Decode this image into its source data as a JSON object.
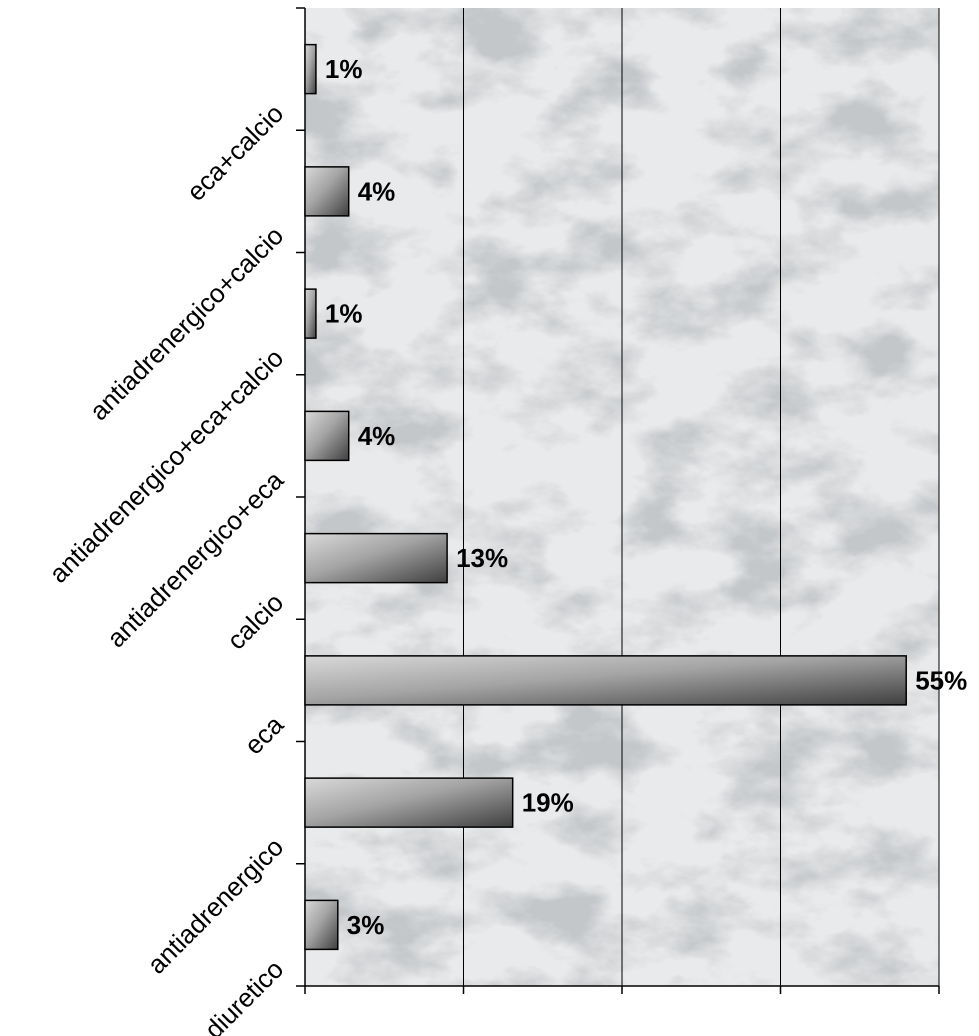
{
  "chart_data": {
    "type": "bar",
    "orientation": "horizontal",
    "categories": [
      "eca+calcio",
      "antiadrenergico+calcio",
      "antiadrenergico+eca+calcio",
      "antiadrenergico+eca",
      "calcio",
      "eca",
      "antiadrenergico",
      "diuretico"
    ],
    "values": [
      1,
      4,
      1,
      4,
      13,
      55,
      19,
      3
    ],
    "data_labels": [
      "1%",
      "4%",
      "1%",
      "4%",
      "13%",
      "55%",
      "19%",
      "3%"
    ],
    "xlim": [
      0,
      58
    ],
    "grid": true,
    "legend": "none",
    "colors": {
      "bar_light": "#d9d9d9",
      "bar_dark": "#3f3f3f",
      "bar_stroke": "#000000",
      "marble_base": "#e9eaeb",
      "marble_vein": "#8e9296"
    }
  }
}
